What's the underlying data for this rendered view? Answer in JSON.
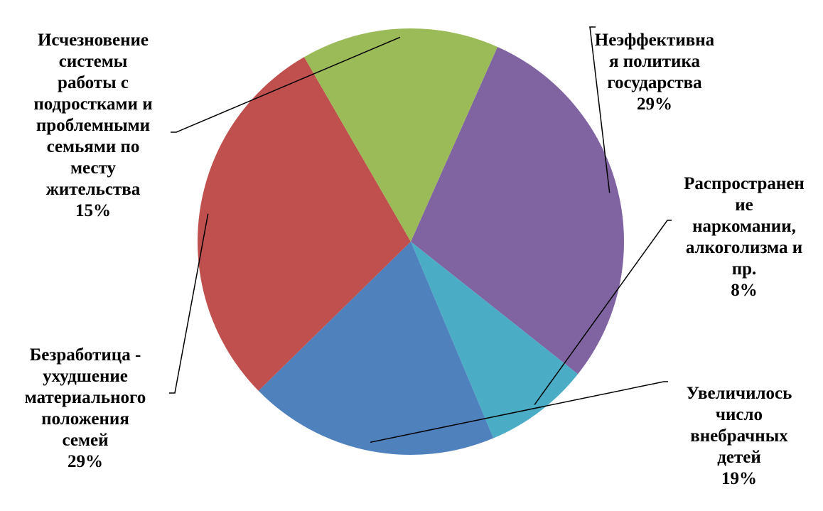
{
  "chart_data": {
    "type": "pie",
    "slices": [
      {
        "label": "Неэффективна\nя политика\nгосударства",
        "value": 29,
        "percent_label": "29%",
        "color": "#8064A2"
      },
      {
        "label": "Распространен\nие\nнаркомании,\nалкоголизма и\nпр.",
        "value": 8,
        "percent_label": "8%",
        "color": "#4BACC6"
      },
      {
        "label": "Увеличилось\nчисло\nвнебрачных\nдетей",
        "value": 19,
        "percent_label": "19%",
        "color": "#4F81BD"
      },
      {
        "label": "Безработица -\nухудшение\nматериального\nположения\nсемей",
        "value": 29,
        "percent_label": "29%",
        "color": "#C0504D"
      },
      {
        "label": "Исчезновение\nсистемы\nработы с\nподростками и\nпроблемными\nсемьями по\nместу\nжительства",
        "value": 15,
        "percent_label": "15%",
        "color": "#9BBB59"
      }
    ],
    "start_angle_deg": -66,
    "direction": "clockwise",
    "legend": "none",
    "title": ""
  }
}
